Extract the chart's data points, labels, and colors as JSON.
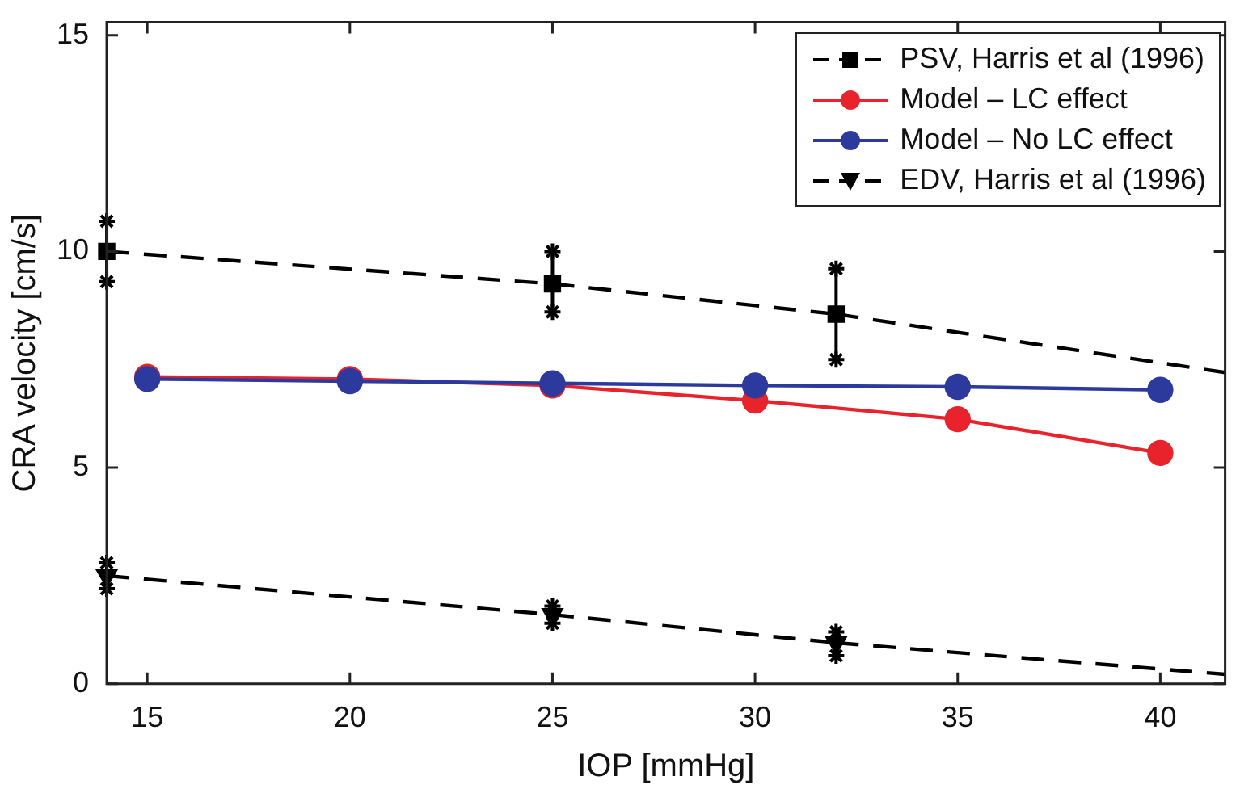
{
  "chart_data": {
    "type": "line",
    "xlabel": "IOP [mmHg]",
    "ylabel": "CRA velocity [cm/s]",
    "xlim": [
      14,
      41.6
    ],
    "ylim": [
      0,
      15.3
    ],
    "xticks": [
      15,
      20,
      25,
      30,
      35,
      40
    ],
    "yticks": [
      0,
      5,
      10,
      15
    ],
    "legend": "top right",
    "series": [
      {
        "name": "PSV, Harris et al (1996)",
        "color": "#000000",
        "marker": "square",
        "line_style": "dashed",
        "x": [
          14,
          25,
          32
        ],
        "values": [
          10,
          9.25,
          8.55
        ],
        "errors": [
          [
            9.3,
            10.7
          ],
          [
            8.6,
            10
          ],
          [
            7.5,
            9.6
          ]
        ]
      },
      {
        "name": "Model – LC effect",
        "color": "#e8232b",
        "marker": "circle",
        "line_style": "solid",
        "x": [
          15,
          20,
          25,
          30,
          35,
          40
        ],
        "values": [
          7.1,
          7.05,
          6.9,
          6.55,
          6.12,
          5.34
        ]
      },
      {
        "name": "Model – No LC effect",
        "color": "#2b3a9c",
        "marker": "circle",
        "line_style": "solid",
        "x": [
          15,
          20,
          25,
          30,
          35,
          40
        ],
        "values": [
          7.05,
          7.0,
          6.95,
          6.9,
          6.87,
          6.8
        ]
      },
      {
        "name": "EDV, Harris et al (1996)",
        "color": "#000000",
        "marker": "triangle",
        "line_style": "dashed",
        "x": [
          14,
          25,
          32
        ],
        "values": [
          2.5,
          1.6,
          0.95
        ],
        "errors": [
          [
            2.2,
            2.8
          ],
          [
            1.4,
            1.8
          ],
          [
            0.65,
            1.2
          ]
        ]
      },
      {
        "color": "#000000",
        "marker": "none",
        "line_style": "dashed",
        "x": [
          32,
          41.6
        ],
        "values": [
          8.55,
          7.2
        ]
      },
      {
        "color": "#000000",
        "marker": "none",
        "line_style": "dashed",
        "x": [
          32,
          41.6
        ],
        "values": [
          0.95,
          0.22
        ]
      }
    ]
  }
}
